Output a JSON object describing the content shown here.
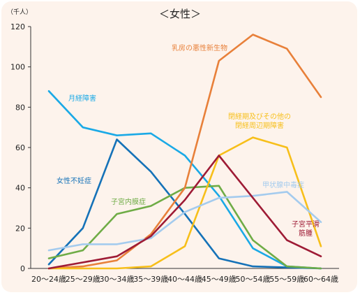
{
  "chart_data": {
    "type": "line",
    "title": "＜女性＞",
    "unit": "（千人）",
    "xlabel": "",
    "ylabel": "",
    "ylim": [
      0,
      120
    ],
    "yticks": [
      0,
      20,
      40,
      60,
      80,
      100,
      120
    ],
    "grid": false,
    "categories": [
      "20～24歳",
      "25～29歳",
      "30～34歳",
      "35～39歳",
      "40～44歳",
      "45～49歳",
      "50～54歳",
      "55～59歳",
      "60～64歳"
    ],
    "series": [
      {
        "name": "月経障害",
        "color": "#1aa9e6",
        "values": [
          88,
          70,
          66,
          67,
          56,
          36,
          10,
          1,
          0
        ]
      },
      {
        "name": "女性不妊症",
        "color": "#1572b8",
        "values": [
          2,
          20,
          64,
          48,
          27,
          5,
          1,
          0.5,
          0
        ]
      },
      {
        "name": "子宮内膜症",
        "color": "#6fac46",
        "values": [
          5,
          9,
          27,
          31,
          40,
          41,
          14,
          1,
          0
        ]
      },
      {
        "name": "乳房の悪性新生物",
        "color": "#e8803a",
        "values": [
          0,
          1,
          4,
          17,
          40,
          103,
          116,
          109,
          85
        ]
      },
      {
        "name": "閉経期及びその他の閉経周辺期障害",
        "color": "#f7bf1a",
        "values": [
          0,
          0,
          0,
          1,
          11,
          56,
          65,
          60,
          11
        ]
      },
      {
        "name": "甲状腺中毒症",
        "color": "#a4cbee",
        "values": [
          9,
          12,
          12,
          15,
          28,
          35,
          36,
          38,
          23
        ]
      },
      {
        "name": "子宮平滑筋腫",
        "color": "#9e1b35",
        "values": [
          0,
          3,
          6,
          16,
          34,
          56,
          35,
          14,
          6
        ]
      }
    ],
    "annotations": [
      {
        "series": "月経障害",
        "lines": [
          "月経障害"
        ]
      },
      {
        "series": "女性不妊症",
        "lines": [
          "女性不妊症"
        ]
      },
      {
        "series": "子宮内膜症",
        "lines": [
          "子宮内膜症"
        ]
      },
      {
        "series": "乳房の悪性新生物",
        "lines": [
          "乳房の悪性新生物"
        ]
      },
      {
        "series": "閉経期及びその他の閉経周辺期障害",
        "lines": [
          "閉経期及びその他の",
          "閉経周辺期障害"
        ]
      },
      {
        "series": "甲状腺中毒症",
        "lines": [
          "甲状腺中毒症"
        ]
      },
      {
        "series": "子宮平滑筋腫",
        "lines": [
          "子宮平滑",
          "筋腫"
        ]
      }
    ]
  }
}
